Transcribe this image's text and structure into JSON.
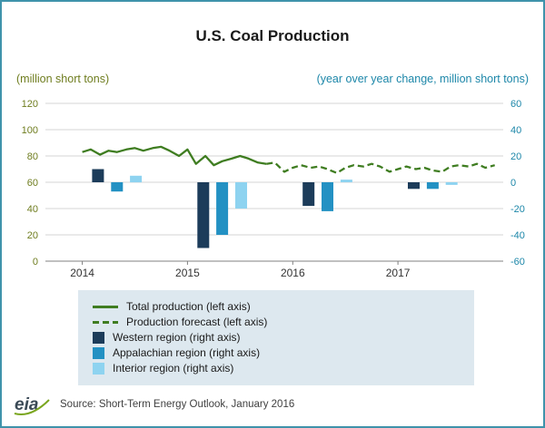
{
  "title": "U.S. Coal Production",
  "chart_data": {
    "type": "line+bar",
    "title": "U.S. Coal Production",
    "left_axis": {
      "label": "(million short tons)",
      "min": 0,
      "max": 120,
      "ticks": [
        0,
        20,
        40,
        60,
        80,
        100,
        120
      ],
      "color": "#6f7d1f"
    },
    "right_axis": {
      "label": "(year over year change, million short tons)",
      "min": -60,
      "max": 60,
      "ticks": [
        -60,
        -40,
        -20,
        0,
        20,
        40,
        60
      ],
      "color": "#1d87a9"
    },
    "x_axis": {
      "min": 2013.65,
      "max": 2018.0,
      "year_ticks": [
        2014,
        2015,
        2016,
        2017
      ]
    },
    "series": [
      {
        "name": "Total production (left axis)",
        "axis": "left",
        "style": "solid",
        "color": "#3f7d21",
        "points": [
          [
            2014.0,
            83
          ],
          [
            2014.08,
            85
          ],
          [
            2014.17,
            81
          ],
          [
            2014.25,
            84
          ],
          [
            2014.33,
            83
          ],
          [
            2014.42,
            85
          ],
          [
            2014.5,
            86
          ],
          [
            2014.58,
            84
          ],
          [
            2014.67,
            86
          ],
          [
            2014.75,
            87
          ],
          [
            2014.83,
            84
          ],
          [
            2014.92,
            80
          ],
          [
            2015.0,
            85
          ],
          [
            2015.08,
            74
          ],
          [
            2015.17,
            80
          ],
          [
            2015.25,
            73
          ],
          [
            2015.33,
            76
          ],
          [
            2015.42,
            78
          ],
          [
            2015.5,
            80
          ],
          [
            2015.58,
            78
          ],
          [
            2015.67,
            75
          ],
          [
            2015.75,
            74
          ]
        ]
      },
      {
        "name": "Production forecast (left axis)",
        "axis": "left",
        "style": "dashed",
        "color": "#3f7d21",
        "points": [
          [
            2015.75,
            74
          ],
          [
            2015.83,
            75
          ],
          [
            2015.92,
            68
          ],
          [
            2016.0,
            71
          ],
          [
            2016.08,
            73
          ],
          [
            2016.17,
            71
          ],
          [
            2016.25,
            72
          ],
          [
            2016.33,
            70
          ],
          [
            2016.42,
            67
          ],
          [
            2016.5,
            71
          ],
          [
            2016.58,
            73
          ],
          [
            2016.67,
            72
          ],
          [
            2016.75,
            74
          ],
          [
            2016.83,
            72
          ],
          [
            2016.92,
            68
          ],
          [
            2017.0,
            70
          ],
          [
            2017.08,
            72
          ],
          [
            2017.17,
            70
          ],
          [
            2017.25,
            71
          ],
          [
            2017.33,
            69
          ],
          [
            2017.42,
            68
          ],
          [
            2017.5,
            72
          ],
          [
            2017.58,
            73
          ],
          [
            2017.67,
            72
          ],
          [
            2017.75,
            74
          ],
          [
            2017.83,
            71
          ],
          [
            2017.92,
            73
          ]
        ]
      }
    ],
    "bars": {
      "years": [
        2014,
        2015,
        2016,
        2017
      ],
      "offsets": [
        0.15,
        0.33,
        0.51
      ],
      "width": 13,
      "regions": [
        {
          "name": "Western region (right axis)",
          "axis": "right",
          "color": "#1c3c5a",
          "values": [
            10,
            -50,
            -18,
            -5
          ]
        },
        {
          "name": "Appalachian region (right axis)",
          "axis": "right",
          "color": "#2391c3",
          "values": [
            -7,
            -40,
            -22,
            -5
          ]
        },
        {
          "name": "Interior region (right axis)",
          "axis": "right",
          "color": "#8ed3f0",
          "values": [
            5,
            -20,
            2,
            -2
          ]
        }
      ]
    }
  },
  "legend": {
    "items": [
      {
        "label": "Total production (left axis)",
        "swatch": "line-solid",
        "color": "#3f7d21"
      },
      {
        "label": "Production forecast (left axis)",
        "swatch": "line-dashed",
        "color": "#3f7d21"
      },
      {
        "label": "Western region (right axis)",
        "swatch": "square",
        "color": "#1c3c5a"
      },
      {
        "label": "Appalachian region (right axis)",
        "swatch": "square",
        "color": "#2391c3"
      },
      {
        "label": "Interior region (right axis)",
        "swatch": "square",
        "color": "#8ed3f0"
      }
    ]
  },
  "footer": {
    "logo_text": "eia",
    "source": "Source: Short-Term Energy Outlook, January 2016"
  },
  "colors": {
    "frame": "#3f93ab",
    "legend_bg": "#dde8ef",
    "grid": "#d6d6d6",
    "axis_line": "#808080",
    "year_label": "#333333"
  }
}
